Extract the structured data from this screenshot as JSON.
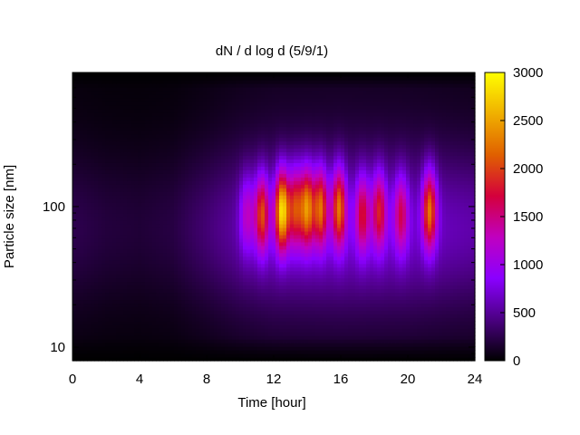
{
  "chart_data": {
    "type": "heatmap",
    "title": "dN / d log d (5/9/1)",
    "xlabel": "Time [hour]",
    "ylabel": "Particle size [nm]",
    "xlim": [
      0,
      24
    ],
    "ylim": [
      8,
      900
    ],
    "y_scale": "log",
    "xticks": [
      0,
      4,
      8,
      12,
      16,
      20,
      24
    ],
    "yticks": [
      10,
      100
    ],
    "colorbar": {
      "range": [
        0,
        3000
      ],
      "ticks": [
        0,
        500,
        1000,
        1500,
        2000,
        2500,
        3000
      ],
      "colormap": [
        "#000000",
        "#4b0082",
        "#8a00ff",
        "#c000c0",
        "#d4003c",
        "#e06000",
        "#f0b000",
        "#ffff00"
      ]
    },
    "background_level": [
      {
        "time": 0,
        "value": 260
      },
      {
        "time": 2,
        "value": 200
      },
      {
        "time": 4,
        "value": 180
      },
      {
        "time": 6,
        "value": 220
      },
      {
        "time": 8,
        "value": 380
      },
      {
        "time": 10,
        "value": 560
      },
      {
        "time": 12,
        "value": 680
      },
      {
        "time": 16,
        "value": 720
      },
      {
        "time": 20,
        "value": 680
      },
      {
        "time": 24,
        "value": 560
      }
    ],
    "peaks": [
      {
        "time": 10.4,
        "size": 90,
        "value": 1200
      },
      {
        "time": 11.3,
        "size": 90,
        "value": 1950
      },
      {
        "time": 12.5,
        "size": 95,
        "value": 2700
      },
      {
        "time": 13.3,
        "size": 100,
        "value": 1800
      },
      {
        "time": 14.0,
        "size": 100,
        "value": 2200
      },
      {
        "time": 14.8,
        "size": 100,
        "value": 2050
      },
      {
        "time": 15.9,
        "size": 100,
        "value": 2100
      },
      {
        "time": 17.3,
        "size": 90,
        "value": 1600
      },
      {
        "time": 18.3,
        "size": 95,
        "value": 1700
      },
      {
        "time": 19.6,
        "size": 90,
        "value": 1500
      },
      {
        "time": 21.3,
        "size": 95,
        "value": 2150
      }
    ]
  }
}
